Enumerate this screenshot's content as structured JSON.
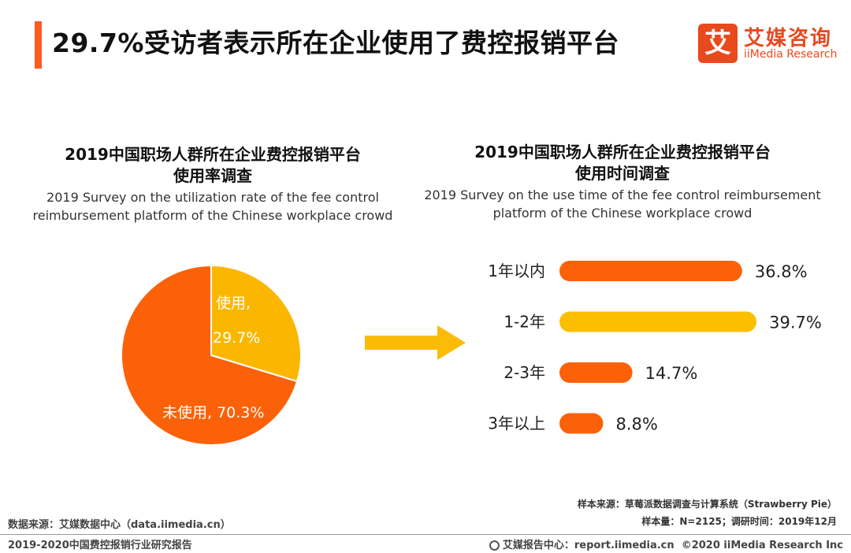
{
  "header": {
    "title": "29.7%受访者表示所在企业使用了费控报销平台",
    "logo_mark": "艾",
    "logo_cn": "艾媒咨询",
    "logo_en": "iiMedia Research"
  },
  "chart_data": [
    {
      "type": "pie",
      "title": "2019中国职场人群所在企业费控报销平台使用率调查",
      "title_line1": "2019中国职场人群所在企业费控报销平台",
      "title_line2": "使用率调查",
      "subtitle_line1": "2019 Survey on the utilization rate of the fee control",
      "subtitle_line2": "reimbursement platform of the Chinese workplace crowd",
      "labels": [
        "使用,",
        "未使用,"
      ],
      "values": [
        29.7,
        70.3
      ],
      "value_labels": [
        "29.7%",
        "70.3%"
      ],
      "colors": [
        "#fbb700",
        "#fb6108"
      ]
    },
    {
      "type": "bar",
      "orientation": "horizontal",
      "title_line1": "2019中国职场人群所在企业费控报销平台",
      "title_line2": "使用时间调查",
      "subtitle_line1": "2019 Survey on the use time of the fee control reimbursement",
      "subtitle_line2": "platform of the Chinese workplace crowd",
      "categories": [
        "1年以内",
        "1-2年",
        "2-3年",
        "3年以上"
      ],
      "values": [
        36.8,
        39.7,
        14.7,
        8.8
      ],
      "value_labels": [
        "36.8%",
        "39.7%",
        "14.7%",
        "8.8%"
      ],
      "colors": [
        "#fb6108",
        "#fbbf00",
        "#fb6108",
        "#fb6108"
      ],
      "xlim": [
        0,
        40
      ]
    }
  ],
  "colors": {
    "accent": "#ff5a1f",
    "arrow": "#fbbc09",
    "logo": "#e8491d"
  },
  "footnotes": {
    "sample_source": "样本来源：草莓派数据调查与计算系统（Strawberry Pie）",
    "sample_size": "样本量：N=2125；调研时间：2019年12月",
    "data_source": "数据来源：艾媒数据中心（data.iimedia.cn）"
  },
  "footer": {
    "report_name": "2019-2020中国费控报销行业研究报告",
    "site": "艾媒报告中心：report.iimedia.cn",
    "copyright": "©2020  iiMedia Research  Inc"
  }
}
